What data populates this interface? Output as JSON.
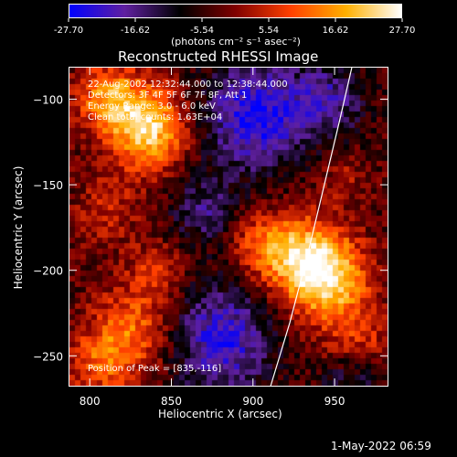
{
  "colorbar": {
    "ticks": [
      "-27.70",
      "-16.62",
      "-5.54",
      "5.54",
      "16.62",
      "27.70"
    ],
    "units": "(photons cm⁻² s⁻¹ asec⁻²)",
    "colors": [
      "#0000ff",
      "#6020a0",
      "#000000",
      "#800000",
      "#ff4000",
      "#ffb000",
      "#ffffff"
    ]
  },
  "chart_data": {
    "type": "heatmap",
    "title": "Reconstructed RHESSI Image",
    "xlabel": "Heliocentric X (arcsec)",
    "ylabel": "Heliocentric Y (arcsec)",
    "xlim": [
      787,
      983
    ],
    "ylim": [
      -268,
      -81
    ],
    "xticks": [
      800,
      850,
      900,
      950
    ],
    "yticks": [
      -100,
      -150,
      -200,
      -250
    ],
    "zlim": [
      -27.7,
      27.7
    ],
    "sources": [
      {
        "x": 835,
        "y": -116,
        "peak": 27.7,
        "radius": 17
      },
      {
        "x": 810,
        "y": -98,
        "peak": 18.0,
        "radius": 14
      },
      {
        "x": 945,
        "y": -205,
        "peak": 26.0,
        "radius": 18
      },
      {
        "x": 930,
        "y": -190,
        "peak": 18.0,
        "radius": 16
      },
      {
        "x": 905,
        "y": -185,
        "peak": 14.0,
        "radius": 14
      },
      {
        "x": 825,
        "y": -235,
        "peak": 16.0,
        "radius": 18
      },
      {
        "x": 840,
        "y": -200,
        "peak": 10.0,
        "radius": 12
      },
      {
        "x": 810,
        "y": -165,
        "peak": 8.0,
        "radius": 15
      },
      {
        "x": 955,
        "y": -145,
        "peak": 6.0,
        "radius": 12
      },
      {
        "x": 965,
        "y": -240,
        "peak": 9.0,
        "radius": 14
      },
      {
        "x": 805,
        "y": -255,
        "peak": 12.0,
        "radius": 14
      }
    ],
    "sinks": [
      {
        "x": 900,
        "y": -110,
        "depth": -22.0,
        "radius": 22
      },
      {
        "x": 880,
        "y": -240,
        "depth": -20.0,
        "radius": 22
      },
      {
        "x": 945,
        "y": -100,
        "depth": -14.0,
        "radius": 16
      },
      {
        "x": 870,
        "y": -165,
        "depth": -12.0,
        "radius": 14
      },
      {
        "x": 960,
        "y": -265,
        "depth": -10.0,
        "radius": 12
      }
    ],
    "limb": [
      [
        910,
        -268
      ],
      [
        922,
        -230
      ],
      [
        933,
        -190
      ],
      [
        943,
        -150
      ],
      [
        953,
        -110
      ],
      [
        960,
        -81
      ]
    ]
  },
  "annotations": {
    "time_range": "22-Aug-2002 12:32:44.000 to 12:38:44.000",
    "detectors": "Detectors: 3F 4F 5F 6F 7F 8F, Att 1",
    "energy": "Energy Range: 3.0 - 6.0 keV",
    "counts": "Clean total counts: 1.63E+04",
    "peak": "Position of Peak = [835,-116]"
  },
  "footer": {
    "timestamp": "1-May-2022 06:59"
  }
}
